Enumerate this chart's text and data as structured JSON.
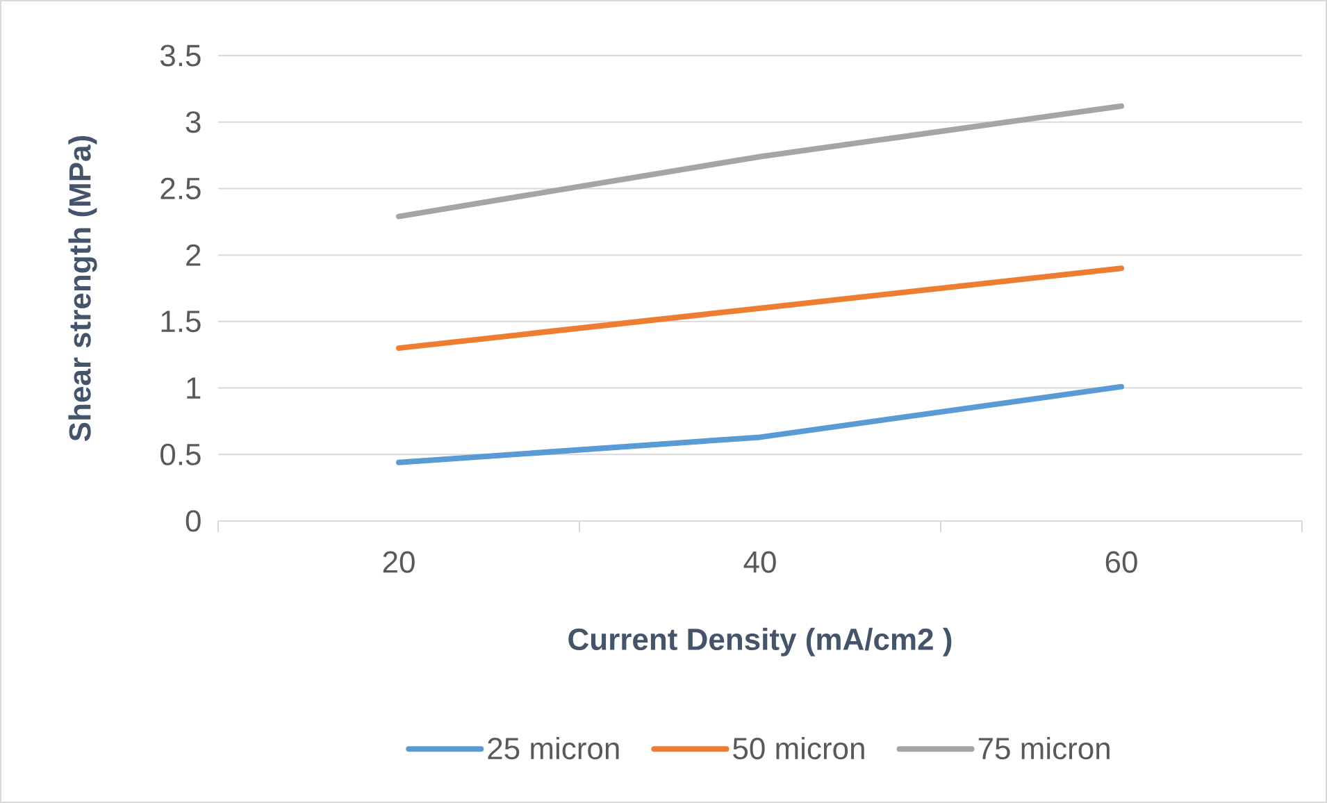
{
  "chart_data": {
    "type": "line",
    "xlabel": "Current Density (mA/cm2 )",
    "ylabel": "Shear strength (MPa)",
    "categories": [
      "20",
      "40",
      "60"
    ],
    "series": [
      {
        "name": "25 micron",
        "color": "#5b9bd5",
        "values": [
          0.44,
          0.63,
          1.01
        ]
      },
      {
        "name": "50 micron",
        "color": "#ed7d31",
        "values": [
          1.3,
          1.6,
          1.9
        ]
      },
      {
        "name": "75 micron",
        "color": "#a5a5a5",
        "values": [
          2.29,
          2.74,
          3.12
        ]
      }
    ],
    "ylim": [
      0,
      3.5
    ],
    "yticks": [
      0,
      0.5,
      1,
      1.5,
      2,
      2.5,
      3,
      3.5
    ],
    "grid": "y",
    "legend": "bottom",
    "marker": "none",
    "line_style": "solid"
  }
}
